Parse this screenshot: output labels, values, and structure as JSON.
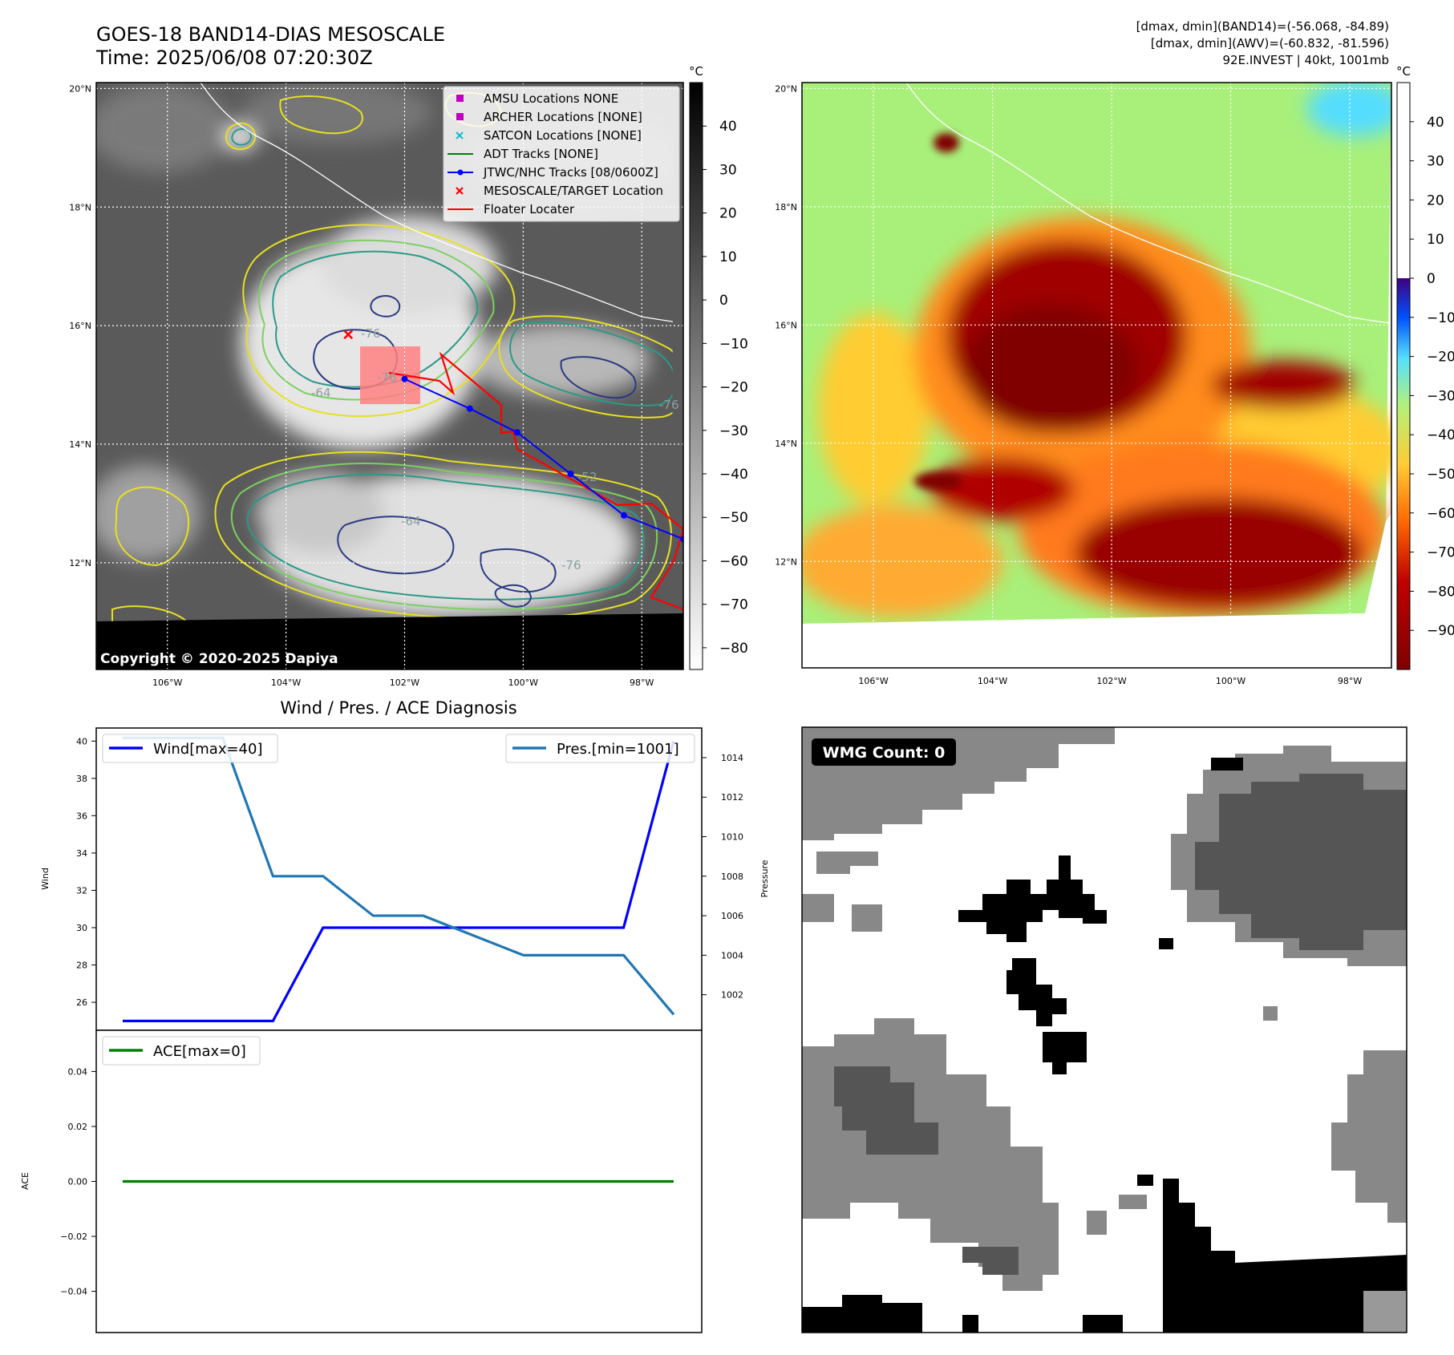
{
  "header": {
    "title_line1": "GOES-18 BAND14-DIAS MESOSCALE",
    "title_line2": "Time: 2025/06/08 07:20:30Z",
    "right_line1": "[dmax, dmin](BAND14)=(-56.068, -84.89)",
    "right_line2": "[dmax, dmin](AWV)=(-60.832, -81.596)",
    "right_line3": "92E.INVEST | 40kt, 1001mb"
  },
  "map": {
    "lat_labels": [
      "20°N",
      "18°N",
      "16°N",
      "14°N",
      "12°N"
    ],
    "lat_values": [
      20,
      18,
      16,
      14,
      12
    ],
    "lon_labels": [
      "106°W",
      "104°W",
      "102°W",
      "100°W",
      "98°W"
    ],
    "lon_values": [
      -106,
      -104,
      -102,
      -100,
      -98
    ],
    "lat_range": [
      10.2,
      20.1
    ],
    "lon_range": [
      -107.2,
      -97.3
    ],
    "copyright": "Copyright © 2020-2025 Dapiya",
    "contour_labels": [
      "-76",
      "-64",
      "-76",
      "-76",
      "-64",
      "-76",
      "-52"
    ],
    "legend": [
      {
        "label": "AMSU Locations NONE",
        "marker": "square",
        "color": "#c000c0"
      },
      {
        "label": "ARCHER Locations [NONE]",
        "marker": "square",
        "color": "#c000c0"
      },
      {
        "label": "SATCON Locations [NONE]",
        "marker": "x",
        "color": "#17becf"
      },
      {
        "label": "ADT Tracks [NONE]",
        "marker": "line",
        "color": "#008000"
      },
      {
        "label": "JTWC/NHC Tracks [08/0600Z]",
        "marker": "line-dot",
        "color": "#0000ff"
      },
      {
        "label": "MESOSCALE/TARGET Location",
        "marker": "x",
        "color": "#ff0000"
      },
      {
        "label": "Floater Locater",
        "marker": "line",
        "color": "#ff0000"
      }
    ],
    "track": {
      "lon": [
        -102.0,
        -100.9,
        -100.1,
        -99.2,
        -98.3,
        -97.3
      ],
      "lat": [
        15.1,
        14.6,
        14.2,
        13.5,
        12.8,
        12.4
      ],
      "color": "#0000ff"
    },
    "target": {
      "lon": -102.95,
      "lat": 15.85,
      "color": "#ff0000"
    }
  },
  "colorbar_left": {
    "unit": "°C",
    "ticks": [
      40,
      30,
      20,
      10,
      0,
      -10,
      -20,
      -30,
      -40,
      -50,
      -60,
      -70,
      -80
    ],
    "range": [
      -85,
      50
    ]
  },
  "colorbar_right": {
    "unit": "°C",
    "ticks": [
      40,
      30,
      20,
      10,
      0,
      -10,
      -20,
      -30,
      -40,
      -50,
      -60,
      -70,
      -80,
      -90
    ],
    "range": [
      -100,
      50
    ]
  },
  "diagnosis": {
    "title": "Wind / Pres. / ACE Diagnosis",
    "wind_ylabel": "Wind",
    "pres_ylabel": "Pressure",
    "ace_ylabel": "ACE",
    "wind_legend": "Wind[max=40]",
    "pres_legend": "Pres.[min=1001]",
    "ace_legend": "ACE[max=0]",
    "wind_color": "#0000ff",
    "pres_color": "#1f77b4",
    "ace_color": "#008000"
  },
  "chart_data": [
    {
      "type": "line",
      "x": [
        0,
        1,
        2,
        3,
        4,
        5,
        6,
        7,
        8,
        9,
        10,
        11
      ],
      "series": [
        {
          "name": "Wind[max=40]",
          "values": [
            25,
            25,
            25,
            25,
            30,
            30,
            30,
            30,
            30,
            30,
            30,
            40
          ]
        },
        {
          "name": "Pres.[min=1001]",
          "values": [
            1015,
            1015,
            1015,
            1008,
            1008,
            1006,
            1006,
            1005,
            1004,
            1004,
            1004,
            1001
          ]
        }
      ],
      "ylim_wind": [
        24.5,
        40.7
      ],
      "ylim_pres": [
        1000.2,
        1015.5
      ],
      "wind_ticks": [
        26,
        28,
        30,
        32,
        34,
        36,
        38,
        40
      ],
      "pres_ticks": [
        1002,
        1004,
        1006,
        1008,
        1010,
        1012,
        1014
      ],
      "legend": "upper-left / upper-right"
    },
    {
      "type": "line",
      "x": [
        0,
        1,
        2,
        3,
        4,
        5,
        6,
        7,
        8,
        9,
        10,
        11
      ],
      "series": [
        {
          "name": "ACE[max=0]",
          "values": [
            0,
            0,
            0,
            0,
            0,
            0,
            0,
            0,
            0,
            0,
            0,
            0
          ]
        }
      ],
      "ylim": [
        -0.055,
        0.055
      ],
      "ticks": [
        0.04,
        0.02,
        0.0,
        -0.02,
        -0.04
      ],
      "tick_labels": [
        "0.04",
        "0.02",
        "0.00",
        "−0.02",
        "−0.04"
      ],
      "legend": "upper-left"
    }
  ],
  "wmg": {
    "label": "WMG Count: 0"
  }
}
